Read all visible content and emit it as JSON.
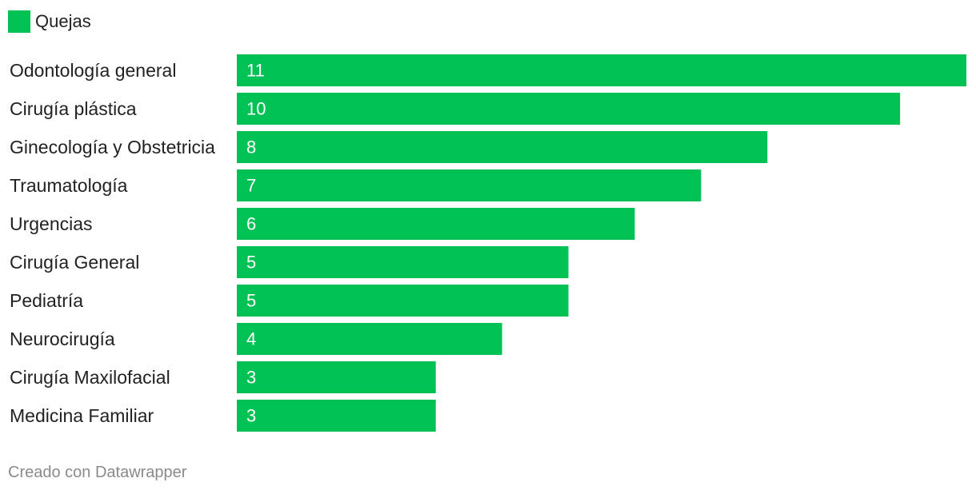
{
  "legend": {
    "label": "Quejas",
    "color": "#00c153"
  },
  "footer": {
    "credit": "Creado con Datawrapper"
  },
  "chart_data": {
    "type": "bar",
    "orientation": "horizontal",
    "categories": [
      "Odontología general",
      "Cirugía plástica",
      "Ginecología y Obstetricia",
      "Traumatología",
      "Urgencias",
      "Cirugía General",
      "Pediatría",
      "Neurocirugía",
      "Cirugía Maxilofacial",
      "Medicina Familiar"
    ],
    "series": [
      {
        "name": "Quejas",
        "values": [
          11,
          10,
          8,
          7,
          6,
          5,
          5,
          4,
          3,
          3
        ],
        "color": "#00c153"
      }
    ],
    "data_labels": true,
    "grid": false,
    "legend_position": "top-left",
    "xlim": [
      0,
      11
    ],
    "title": "",
    "xlabel": "",
    "ylabel": ""
  }
}
